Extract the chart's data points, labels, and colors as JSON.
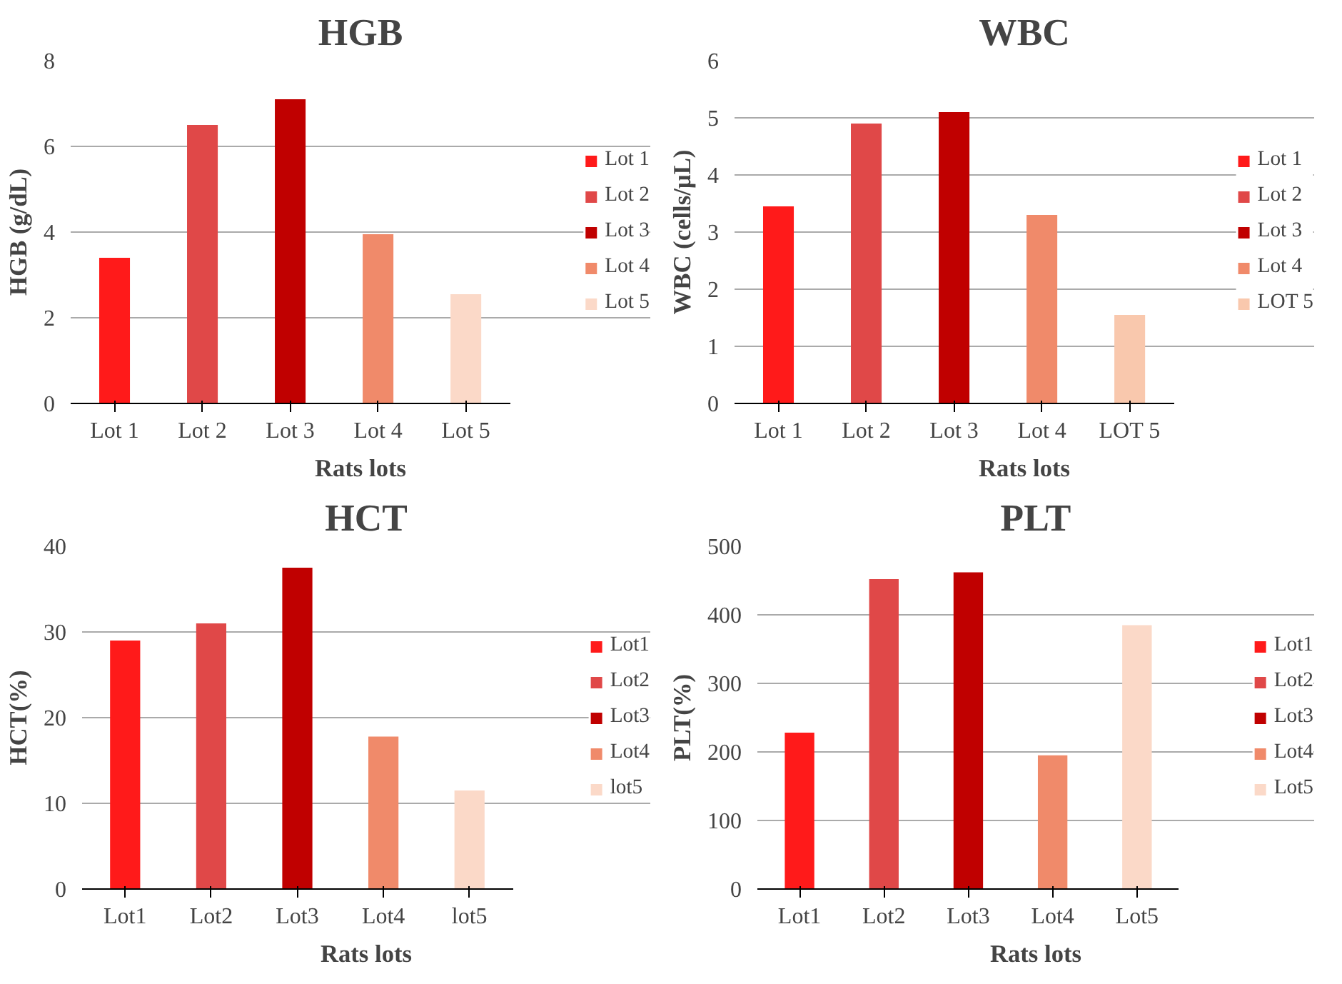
{
  "chart_data": [
    {
      "type": "bar",
      "title": "HGB",
      "xlabel": "Rats lots",
      "ylabel": "HGB (g/dL)",
      "categories": [
        "Lot 1",
        "Lot 2",
        "Lot 3",
        "Lot 4",
        "Lot 5"
      ],
      "series": [
        {
          "name": "Lot 1",
          "color": "#ff1a1a",
          "values": [
            3.4,
            null,
            null,
            null,
            null
          ]
        },
        {
          "name": "Lot 2",
          "color": "#e04848",
          "values": [
            null,
            6.5,
            null,
            null,
            null
          ]
        },
        {
          "name": "Lot 3",
          "color": "#c00000",
          "values": [
            null,
            null,
            7.1,
            null,
            null
          ]
        },
        {
          "name": "Lot 4",
          "color": "#f08a6a",
          "values": [
            null,
            null,
            null,
            3.95,
            null
          ]
        },
        {
          "name": "Lot 5",
          "color": "#fbd9c8",
          "values": [
            null,
            null,
            null,
            null,
            2.55
          ]
        }
      ],
      "ylim": [
        0,
        8
      ],
      "yticks": [
        0,
        2,
        4,
        6,
        8
      ],
      "grid": "y",
      "legend": "right"
    },
    {
      "type": "bar",
      "title": "WBC",
      "xlabel": "Rats lots",
      "ylabel": "WBC (cells/µL)",
      "categories": [
        "Lot 1",
        "Lot 2",
        "Lot 3",
        "Lot 4",
        "LOT 5"
      ],
      "series": [
        {
          "name": "Lot 1",
          "color": "#ff1a1a",
          "values": [
            3.45,
            null,
            null,
            null,
            null
          ]
        },
        {
          "name": "Lot 2",
          "color": "#e04848",
          "values": [
            null,
            4.9,
            null,
            null,
            null
          ]
        },
        {
          "name": "Lot 3",
          "color": "#c00000",
          "values": [
            null,
            null,
            5.1,
            null,
            null
          ]
        },
        {
          "name": "Lot 4",
          "color": "#f08a6a",
          "values": [
            null,
            null,
            null,
            3.3,
            null
          ]
        },
        {
          "name": "LOT 5",
          "color": "#f9c8ad",
          "values": [
            null,
            null,
            null,
            null,
            1.55
          ]
        }
      ],
      "ylim": [
        0,
        6
      ],
      "yticks": [
        0,
        1,
        2,
        3,
        4,
        5,
        6
      ],
      "grid": "y",
      "legend": "right"
    },
    {
      "type": "bar",
      "title": "HCT",
      "xlabel": "Rats lots",
      "ylabel": "HCT(%)",
      "categories": [
        "Lot1",
        "Lot2",
        "Lot3",
        "Lot4",
        "lot5"
      ],
      "series": [
        {
          "name": "Lot1",
          "color": "#ff1a1a",
          "values": [
            29,
            null,
            null,
            null,
            null
          ]
        },
        {
          "name": "Lot2",
          "color": "#e04848",
          "values": [
            null,
            31,
            null,
            null,
            null
          ]
        },
        {
          "name": "Lot3",
          "color": "#c00000",
          "values": [
            null,
            null,
            37.5,
            null,
            null
          ]
        },
        {
          "name": "Lot4",
          "color": "#f08a6a",
          "values": [
            null,
            null,
            null,
            17.8,
            null
          ]
        },
        {
          "name": "lot5",
          "color": "#fbd9c8",
          "values": [
            null,
            null,
            null,
            null,
            11.5
          ]
        }
      ],
      "ylim": [
        0,
        40
      ],
      "yticks": [
        0,
        10,
        20,
        30,
        40
      ],
      "grid": "y",
      "legend": "right"
    },
    {
      "type": "bar",
      "title": "PLT",
      "xlabel": "Rats lots",
      "ylabel": "PLT(%)",
      "categories": [
        "Lot1",
        "Lot2",
        "Lot3",
        "Lot4",
        "Lot5"
      ],
      "series": [
        {
          "name": "Lot1",
          "color": "#ff1a1a",
          "values": [
            228,
            null,
            null,
            null,
            null
          ]
        },
        {
          "name": "Lot2",
          "color": "#e04848",
          "values": [
            null,
            452,
            null,
            null,
            null
          ]
        },
        {
          "name": "Lot3",
          "color": "#c00000",
          "values": [
            null,
            null,
            462,
            null,
            null
          ]
        },
        {
          "name": "Lot4",
          "color": "#f08a6a",
          "values": [
            null,
            null,
            null,
            195,
            null
          ]
        },
        {
          "name": "Lot5",
          "color": "#fbd9c8",
          "values": [
            null,
            null,
            null,
            null,
            385
          ]
        }
      ],
      "ylim": [
        0,
        500
      ],
      "yticks": [
        0,
        100,
        200,
        300,
        400,
        500
      ],
      "grid": "y",
      "legend": "right"
    }
  ]
}
